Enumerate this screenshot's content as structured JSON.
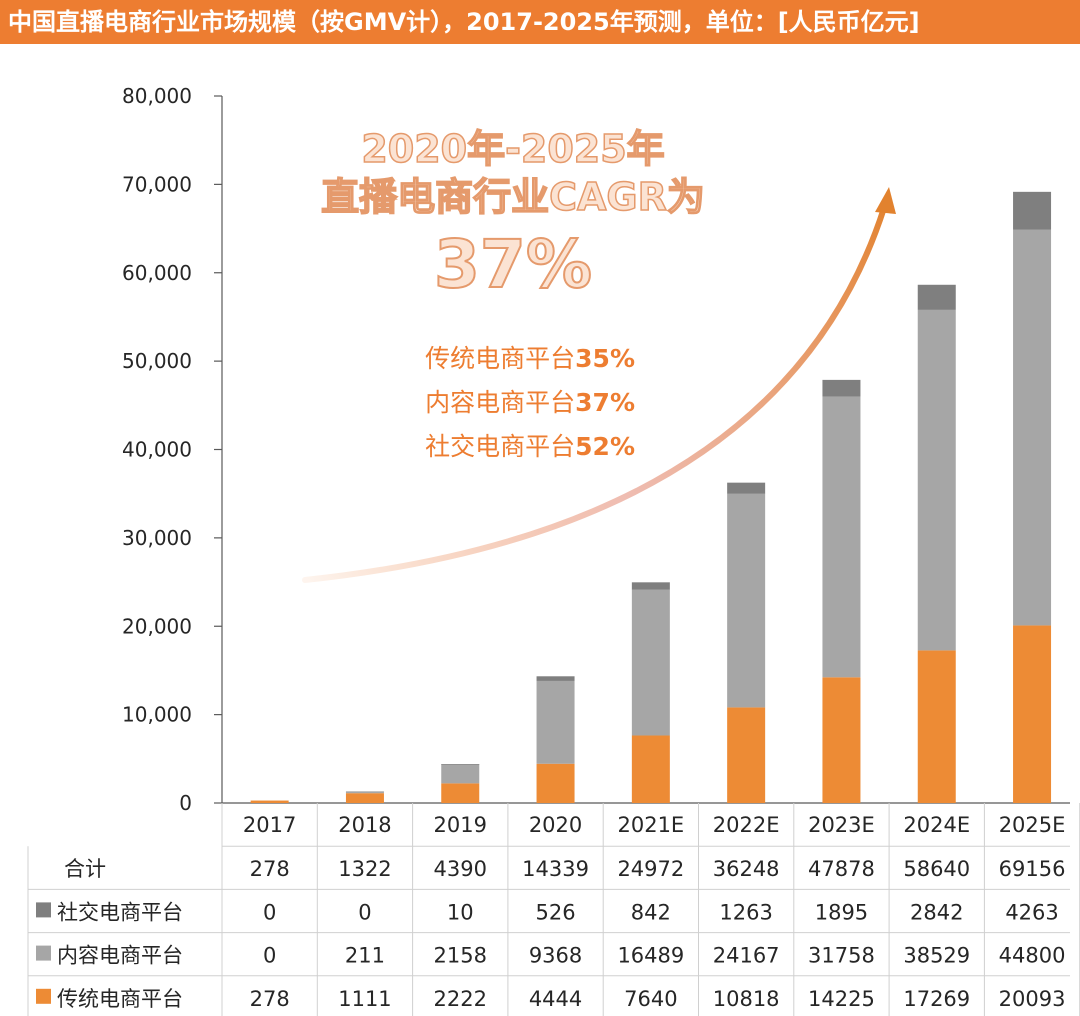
{
  "title": "中国直播电商行业市场规模（按GMV计），2017-2025年预测，单位：[人民币亿元]",
  "annotation": {
    "headline_line1": "2020年-2025年",
    "headline_line2": "直播电商行业CAGR为",
    "headline_value": "37%",
    "details": [
      {
        "label": "传统电商平台",
        "value": "35%"
      },
      {
        "label": "内容电商平台",
        "value": "37%"
      },
      {
        "label": "社交电商平台",
        "value": "52%"
      }
    ]
  },
  "colors": {
    "accent": "#ed7d31",
    "traditional": "#ed8b35",
    "content": "#a6a6a6",
    "social": "#7f7f7f"
  },
  "chart_data": {
    "type": "bar",
    "stacked": true,
    "categories": [
      "2017",
      "2018",
      "2019",
      "2020",
      "2021E",
      "2022E",
      "2023E",
      "2024E",
      "2025E"
    ],
    "ylim": [
      0,
      80000
    ],
    "yticks": [
      "0",
      "10,000",
      "20,000",
      "30,000",
      "40,000",
      "50,000",
      "60,000",
      "70,000",
      "80,000"
    ],
    "yticks_values": [
      0,
      10000,
      20000,
      30000,
      40000,
      50000,
      60000,
      70000,
      80000
    ],
    "total_label": "合计",
    "totals": [
      278,
      1322,
      4390,
      14339,
      24972,
      36248,
      47878,
      58640,
      69156
    ],
    "series": [
      {
        "name": "社交电商平台",
        "color": "#7f7f7f",
        "values": [
          0,
          0,
          10,
          526,
          842,
          1263,
          1895,
          2842,
          4263
        ]
      },
      {
        "name": "内容电商平台",
        "color": "#a6a6a6",
        "values": [
          0,
          211,
          2158,
          9368,
          16489,
          24167,
          31758,
          38529,
          44800
        ]
      },
      {
        "name": "传统电商平台",
        "color": "#ed8b35",
        "values": [
          278,
          1111,
          2222,
          4444,
          7640,
          10818,
          14225,
          17269,
          20093
        ]
      }
    ]
  }
}
